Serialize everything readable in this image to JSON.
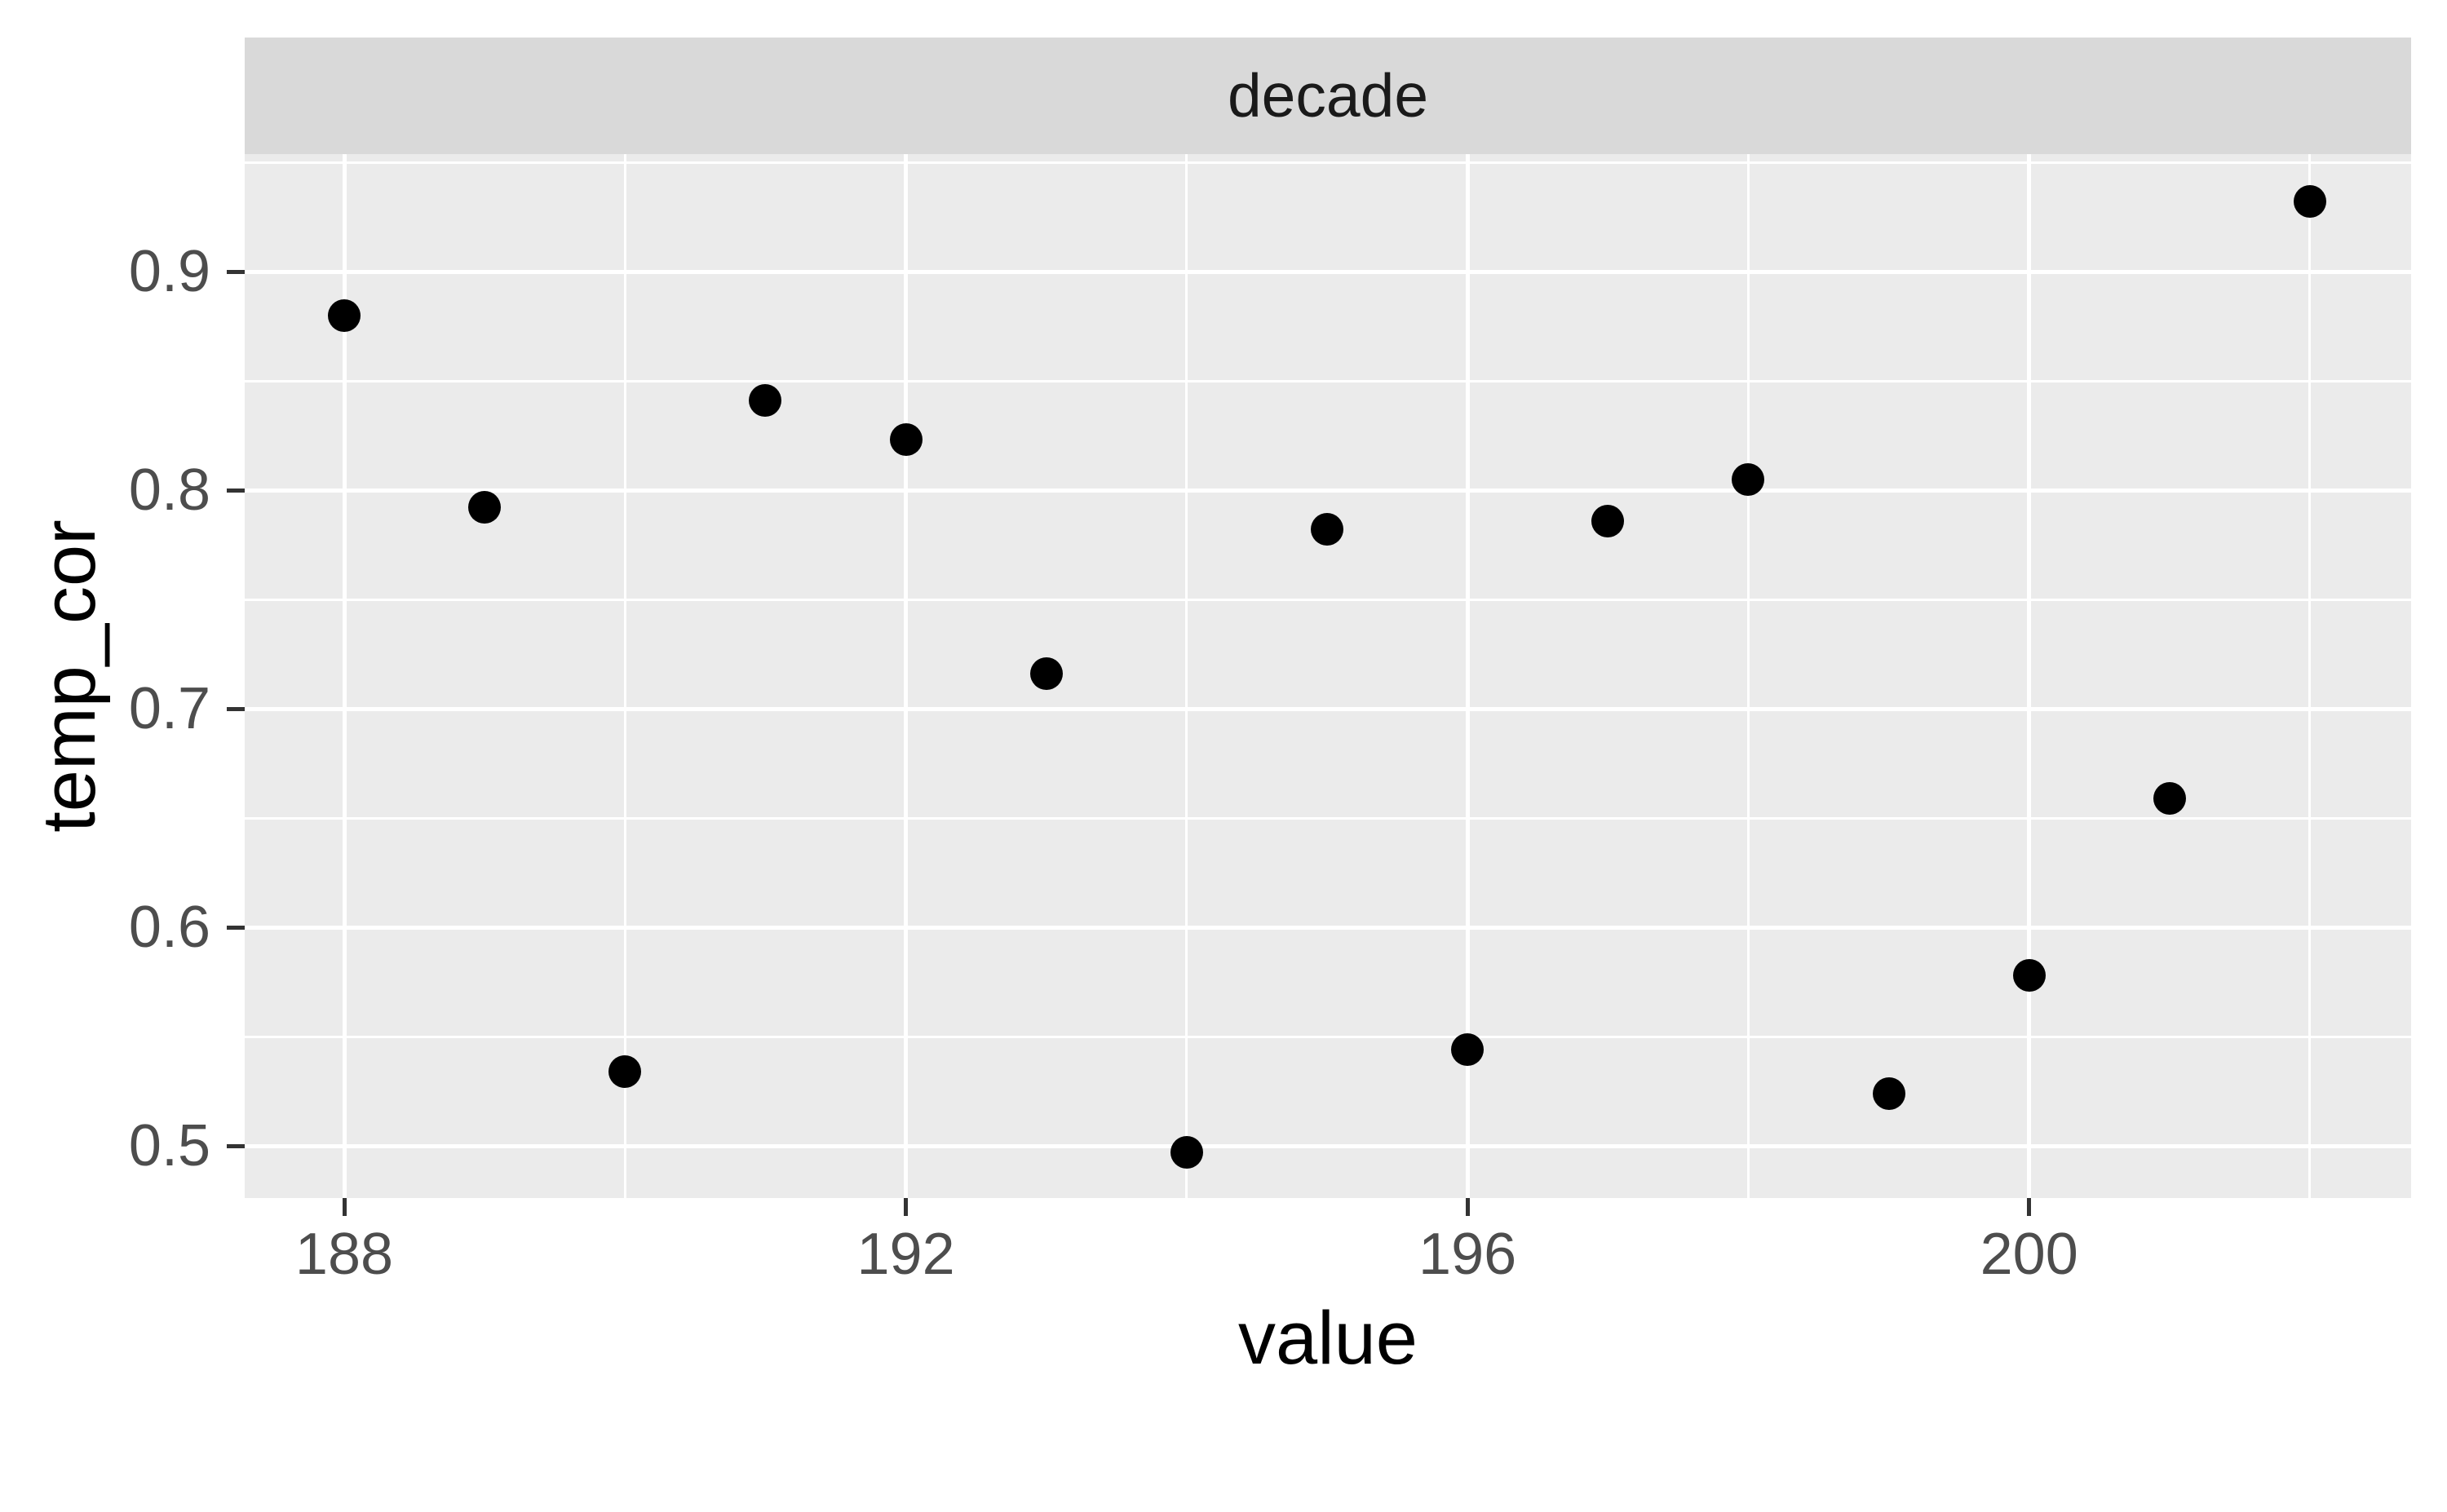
{
  "facet_strip": {
    "label": "decade"
  },
  "axes": {
    "x_title": "value",
    "y_title": "temp_cor",
    "x_tick_labels": [
      "188",
      "192",
      "196",
      "200"
    ],
    "y_tick_labels": [
      "0.9",
      "0.8",
      "0.7",
      "0.6",
      "0.5"
    ]
  },
  "chart_data": {
    "type": "scatter",
    "title": "decade",
    "xlabel": "value",
    "ylabel": "temp_cor",
    "x": [
      188,
      189,
      190,
      191,
      192,
      193,
      194,
      195,
      196,
      197,
      198,
      199,
      200,
      201,
      202
    ],
    "y": [
      0.88,
      0.792,
      0.534,
      0.841,
      0.823,
      0.716,
      0.497,
      0.782,
      0.544,
      0.786,
      0.805,
      0.524,
      0.578,
      0.659,
      0.932
    ],
    "xticks_major": [
      188,
      192,
      196,
      200
    ],
    "xticks_minor": [
      190,
      194,
      198,
      202
    ],
    "yticks_major": [
      0.9,
      0.8,
      0.7,
      0.6,
      0.5
    ],
    "yticks_minor": [
      0.95,
      0.85,
      0.75,
      0.65,
      0.55
    ],
    "xlim": [
      187.29,
      202.94
    ],
    "ylim": [
      0.476,
      0.953
    ],
    "grid": "on",
    "legend": "none",
    "point_color": "#000000"
  },
  "colors": {
    "panel_background": "#ebebeb",
    "strip_background": "#d9d9d9",
    "gridline": "#ffffff",
    "tick_mark": "#333333",
    "tick_label": "#4d4d4d",
    "axis_title": "#000000",
    "strip_text": "#1a1a1a",
    "point": "#000000"
  }
}
